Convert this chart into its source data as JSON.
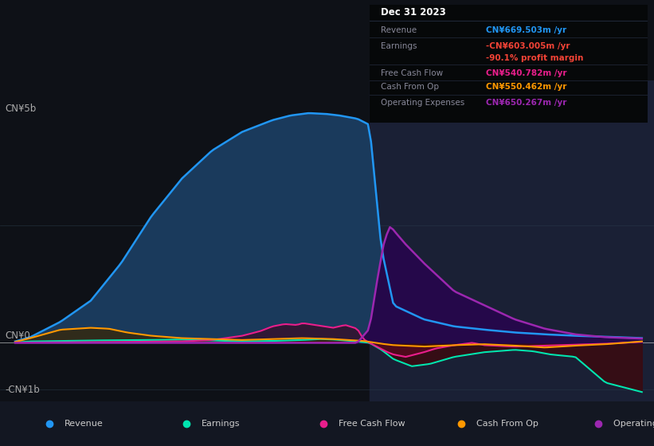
{
  "bg_color": "#0e1117",
  "chart_bg": "#131722",
  "shaded_bg": "#1a2035",
  "ylabel_top": "CN¥5b",
  "ylabel_zero": "CN¥0",
  "ylabel_neg": "-CN¥1b",
  "ylim": [
    -1250000000.0,
    5600000000.0
  ],
  "xlim_start": 2013.5,
  "xlim_end": 2024.3,
  "xticks": [
    2014,
    2015,
    2016,
    2017,
    2018,
    2019,
    2020,
    2021,
    2022,
    2023
  ],
  "shaded_region_start": 2019.6,
  "info_box_title": "Dec 31 2023",
  "info_rows": [
    {
      "label": "Revenue",
      "value": "CN¥669.503m /yr",
      "value_color": "#2196f3"
    },
    {
      "label": "Earnings",
      "value": "-CN¥603.005m /yr",
      "value_color": "#f44336"
    },
    {
      "label": "",
      "value": "-90.1% profit margin",
      "value_color": "#f44336"
    },
    {
      "label": "Free Cash Flow",
      "value": "CN¥540.782m /yr",
      "value_color": "#e91e8c"
    },
    {
      "label": "Cash From Op",
      "value": "CN¥550.462m /yr",
      "value_color": "#ff9800"
    },
    {
      "label": "Operating Expenses",
      "value": "CN¥650.267m /yr",
      "value_color": "#9c27b0"
    }
  ],
  "revenue_color": "#2196f3",
  "revenue_fill": "#1a3a5c",
  "earnings_color": "#00e5b0",
  "earnings_fill_pos": "#1a4a3a",
  "earnings_fill_neg": "#3a0a10",
  "fcf_color": "#e91e8c",
  "fcf_fill_pos": "#3a0a25",
  "fcf_fill_neg": "#5a0a20",
  "cfo_color": "#ff9800",
  "cfo_fill_pos": "#3a2500",
  "cfo_fill_neg": "#2a1200",
  "opex_color": "#9c27b0",
  "opex_fill": "#25084a",
  "legend": [
    {
      "label": "Revenue",
      "color": "#2196f3"
    },
    {
      "label": "Earnings",
      "color": "#00e5b0"
    },
    {
      "label": "Free Cash Flow",
      "color": "#e91e8c"
    },
    {
      "label": "Cash From Op",
      "color": "#ff9800"
    },
    {
      "label": "Operating Expenses",
      "color": "#9c27b0"
    }
  ]
}
